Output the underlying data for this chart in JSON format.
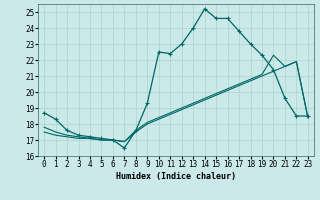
{
  "title": "",
  "xlabel": "Humidex (Indice chaleur)",
  "ylabel": "",
  "background_color": "#cbe9e9",
  "grid_color": "#aad4cc",
  "line_color": "#006666",
  "xlim": [
    -0.5,
    23.5
  ],
  "ylim": [
    16,
    25.5
  ],
  "yticks": [
    16,
    17,
    18,
    19,
    20,
    21,
    22,
    23,
    24,
    25
  ],
  "xticks": [
    0,
    1,
    2,
    3,
    4,
    5,
    6,
    7,
    8,
    9,
    10,
    11,
    12,
    13,
    14,
    15,
    16,
    17,
    18,
    19,
    20,
    21,
    22,
    23
  ],
  "line1_x": [
    0,
    1,
    2,
    3,
    4,
    5,
    6,
    7,
    8,
    9,
    10,
    11,
    12,
    13,
    14,
    15,
    16,
    17,
    18,
    19,
    20,
    21,
    22,
    23
  ],
  "line1_y": [
    18.7,
    18.3,
    17.6,
    17.3,
    17.2,
    17.1,
    17.0,
    16.5,
    17.6,
    19.3,
    22.5,
    22.4,
    23.0,
    24.0,
    25.2,
    24.6,
    24.6,
    23.8,
    23.0,
    22.3,
    21.4,
    19.6,
    18.5,
    18.5
  ],
  "line2_x": [
    0,
    1,
    2,
    3,
    4,
    5,
    6,
    7,
    8,
    9,
    10,
    11,
    12,
    13,
    14,
    15,
    16,
    17,
    18,
    19,
    20,
    21,
    22,
    23
  ],
  "line2_y": [
    17.5,
    17.3,
    17.2,
    17.1,
    17.1,
    17.0,
    17.0,
    16.9,
    17.5,
    18.0,
    18.3,
    18.6,
    18.9,
    19.2,
    19.5,
    19.8,
    20.1,
    20.4,
    20.7,
    21.0,
    21.3,
    21.6,
    21.9,
    18.4
  ],
  "line3_x": [
    0,
    1,
    2,
    3,
    4,
    5,
    6,
    7,
    8,
    9,
    10,
    11,
    12,
    13,
    14,
    15,
    16,
    17,
    18,
    19,
    20,
    21,
    22,
    23
  ],
  "line3_y": [
    17.8,
    17.5,
    17.3,
    17.2,
    17.1,
    17.0,
    17.0,
    16.9,
    17.6,
    18.1,
    18.4,
    18.7,
    19.0,
    19.3,
    19.6,
    19.9,
    20.2,
    20.5,
    20.8,
    21.1,
    22.3,
    21.6,
    21.9,
    18.4
  ]
}
